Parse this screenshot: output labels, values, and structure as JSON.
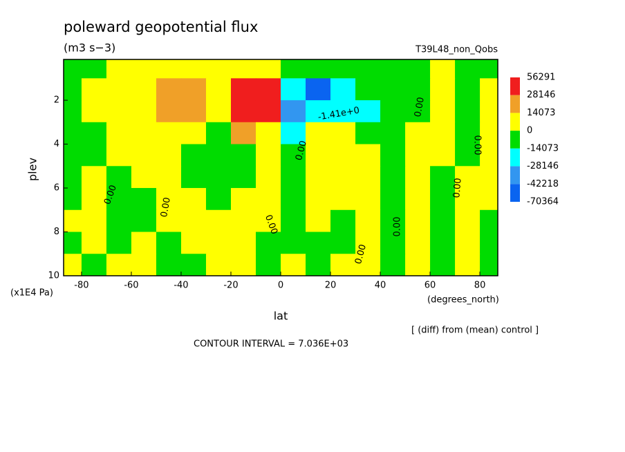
{
  "chart_data": {
    "type": "contourf",
    "title": "poleward geopotential flux",
    "subtitle": "(m3 s−3)",
    "run_label": "T39L48_non_Qobs",
    "x_label": "lat",
    "x_unit": "(degrees_north)",
    "y_label": "plev",
    "y_unit": "(x1E4 Pa)",
    "note": "[ (diff) from (mean) control ]",
    "contour_interval": "CONTOUR INTERVAL = 7.036E+03",
    "xlim": [
      -87.2,
      87.2
    ],
    "xticks": [
      -80,
      -60,
      -40,
      -20,
      0,
      20,
      40,
      60,
      80
    ],
    "ylim": [
      10,
      0.14
    ],
    "yticks": [
      2,
      4,
      6,
      8,
      10
    ],
    "x": [
      -85,
      -75,
      -65,
      -55,
      -45,
      -35,
      -25,
      -15,
      -5,
      5,
      15,
      25,
      35,
      45,
      55,
      65,
      75,
      85
    ],
    "y": [
      0.5,
      1.5,
      2.5,
      3.5,
      4.5,
      5.5,
      6.5,
      7.5,
      8.5,
      9.5
    ],
    "z": [
      [
        -5000,
        -5000,
        5000,
        5000,
        5000,
        5000,
        5000,
        5000,
        5000,
        -5000,
        -5000,
        -5000,
        -5000,
        -5000,
        -5000,
        5000,
        -5000,
        -5000
      ],
      [
        -5000,
        5000,
        5000,
        5000,
        20000,
        20000,
        5000,
        40000,
        40000,
        -20000,
        -50000,
        -20000,
        -5000,
        -5000,
        -5000,
        5000,
        -5000,
        5000
      ],
      [
        -5000,
        5000,
        5000,
        5000,
        20000,
        20000,
        5000,
        40000,
        40000,
        -35000,
        -20000,
        -20000,
        -20000,
        -5000,
        -5000,
        5000,
        -5000,
        5000
      ],
      [
        -5000,
        -5000,
        5000,
        5000,
        5000,
        5000,
        -5000,
        20000,
        5000,
        -20000,
        5000,
        5000,
        -5000,
        -5000,
        5000,
        5000,
        -5000,
        5000
      ],
      [
        -5000,
        -5000,
        5000,
        5000,
        5000,
        -5000,
        -5000,
        -5000,
        5000,
        -5000,
        5000,
        5000,
        5000,
        -5000,
        5000,
        5000,
        -5000,
        5000
      ],
      [
        -5000,
        5000,
        -5000,
        5000,
        5000,
        -5000,
        -5000,
        -5000,
        5000,
        -5000,
        5000,
        5000,
        5000,
        -5000,
        5000,
        -5000,
        5000,
        5000
      ],
      [
        -5000,
        5000,
        -5000,
        -5000,
        5000,
        5000,
        -5000,
        5000,
        5000,
        -5000,
        5000,
        5000,
        5000,
        -5000,
        5000,
        -5000,
        5000,
        5000
      ],
      [
        5000,
        5000,
        -5000,
        -5000,
        5000,
        5000,
        5000,
        5000,
        5000,
        -5000,
        5000,
        -5000,
        5000,
        -5000,
        5000,
        -5000,
        5000,
        -5000
      ],
      [
        -5000,
        5000,
        -5000,
        5000,
        -5000,
        5000,
        5000,
        5000,
        -5000,
        -5000,
        -5000,
        -5000,
        5000,
        -5000,
        5000,
        -5000,
        5000,
        -5000
      ],
      [
        5000,
        -5000,
        5000,
        5000,
        -5000,
        -5000,
        5000,
        5000,
        -5000,
        5000,
        -5000,
        5000,
        5000,
        -5000,
        5000,
        -5000,
        5000,
        -5000
      ]
    ],
    "levels": [
      56291,
      28146,
      14073,
      0,
      -14073,
      -28146,
      -42218,
      -70364
    ],
    "colors": [
      "#f01e1e",
      "#f0a028",
      "#ffff00",
      "#00dc00",
      "#00ffff",
      "#3296f0",
      "#0a64f0"
    ],
    "annotations": [
      "0.00",
      "0.00",
      "0.00",
      "0.00",
      "0.00",
      "0.00",
      "0.00",
      "0.00",
      "0.00",
      "-1.41e+0"
    ]
  }
}
